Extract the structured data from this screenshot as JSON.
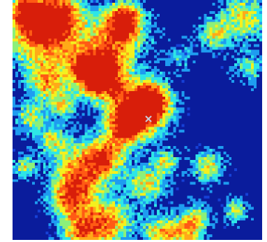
{
  "image": {
    "kind": "pixelated heatmap",
    "colormap": "jet",
    "grid_columns": 90,
    "grid_rows": 87,
    "background_level": 0.1,
    "palette": [
      "#0a1c9c",
      "#1640d6",
      "#1e9cf0",
      "#2ee6e6",
      "#8cf07a",
      "#f4f01e",
      "#ffaa18",
      "#ff5a14",
      "#d81e0a"
    ]
  },
  "cursor": {
    "icon": "x-crosshair-icon",
    "color": "#c8ccd8"
  }
}
